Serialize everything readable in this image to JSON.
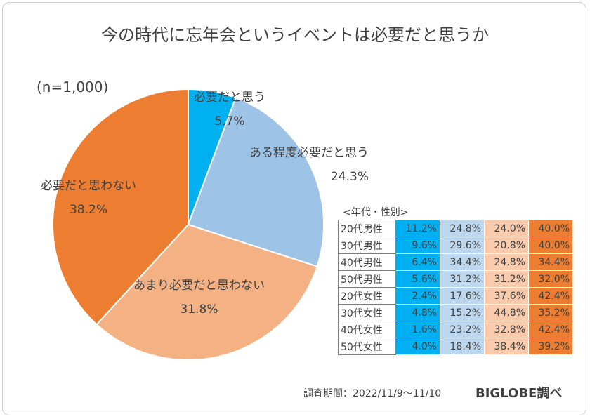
{
  "title": "今の時代に忘年会というイベントは必要だと思うか",
  "sample_size": "(n=1,000)",
  "chart_data": {
    "type": "pie",
    "title": "今の時代に忘年会というイベントは必要だと思うか",
    "slices": [
      {
        "label": "必要だと思う",
        "value": 5.7,
        "display": "5.7%",
        "color": "#00b0f0"
      },
      {
        "label": "ある程度必要だと思う",
        "value": 24.3,
        "display": "24.3%",
        "color": "#9dc3e6"
      },
      {
        "label": "あまり必要だと思わない",
        "value": 31.8,
        "display": "31.8%",
        "color": "#f4b183"
      },
      {
        "label": "必要だと思わない",
        "value": 38.2,
        "display": "38.2%",
        "color": "#ed7d31"
      }
    ]
  },
  "table": {
    "caption": "<年代・性別>",
    "rows": [
      {
        "label": "20代男性",
        "values": [
          "11.2%",
          "24.8%",
          "24.0%",
          "40.0%"
        ]
      },
      {
        "label": "30代男性",
        "values": [
          "9.6%",
          "29.6%",
          "20.8%",
          "40.0%"
        ]
      },
      {
        "label": "40代男性",
        "values": [
          "6.4%",
          "34.4%",
          "24.8%",
          "34.4%"
        ]
      },
      {
        "label": "50代男性",
        "values": [
          "5.6%",
          "31.2%",
          "31.2%",
          "32.0%"
        ]
      },
      {
        "label": "20代女性",
        "values": [
          "2.4%",
          "17.6%",
          "37.6%",
          "42.4%"
        ]
      },
      {
        "label": "30代女性",
        "values": [
          "4.8%",
          "15.2%",
          "44.8%",
          "35.2%"
        ]
      },
      {
        "label": "40代女性",
        "values": [
          "1.6%",
          "23.2%",
          "32.8%",
          "42.4%"
        ]
      },
      {
        "label": "50代女性",
        "values": [
          "4.0%",
          "18.4%",
          "38.4%",
          "39.2%"
        ]
      }
    ]
  },
  "footer": {
    "survey_period": "調査期間：2022/11/9～11/10",
    "brand": "BIGLOBE調べ"
  }
}
